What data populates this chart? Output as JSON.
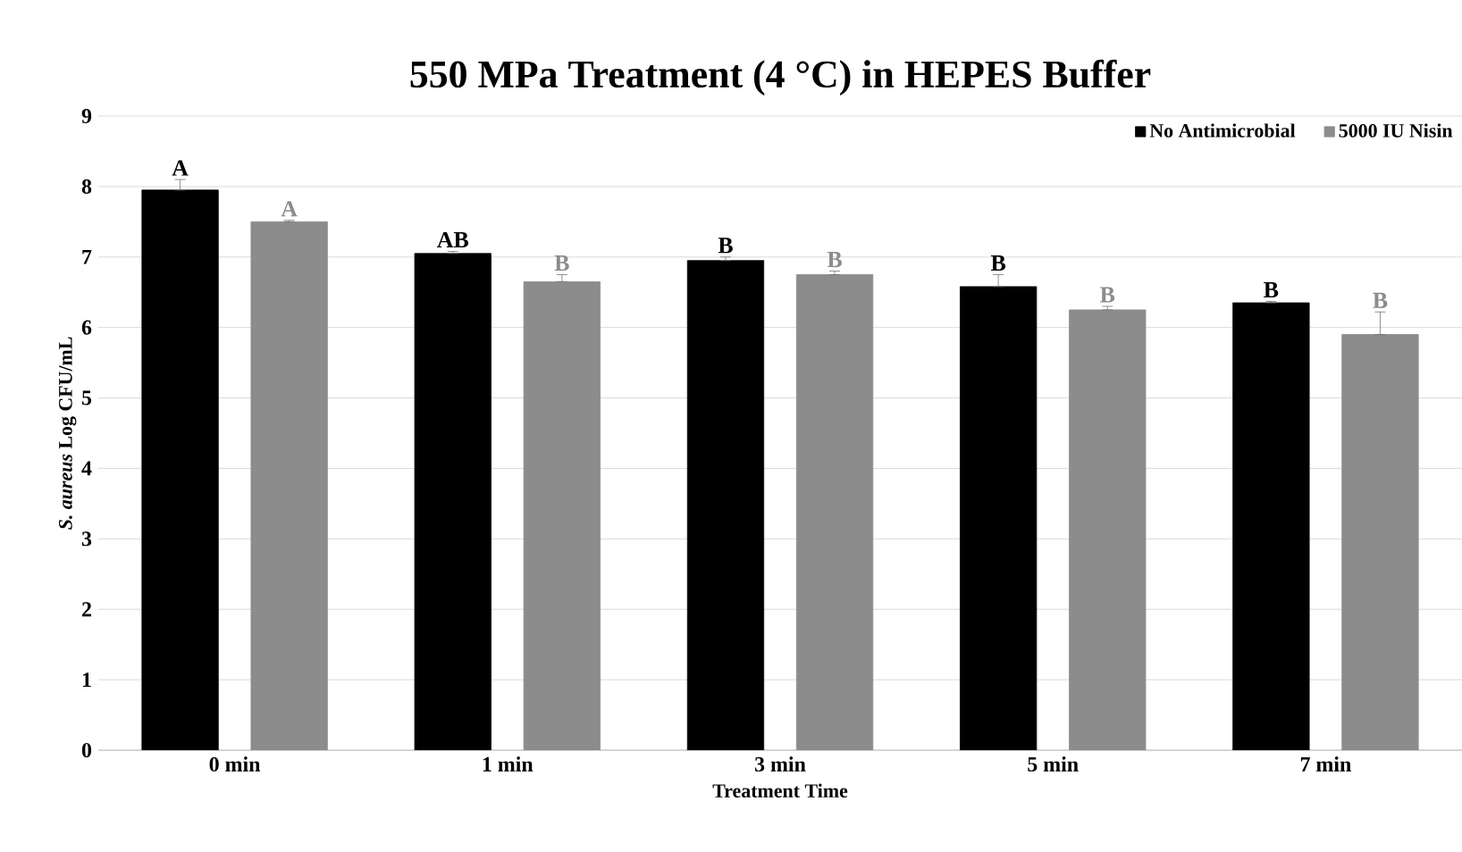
{
  "chart_data": {
    "type": "bar",
    "title": "550 MPa Treatment (4 °C) in HEPES Buffer",
    "xlabel": "Treatment Time",
    "ylabel": "*S. aureus* Log CFU/mL",
    "categories": [
      "0 min",
      "1 min",
      "3 min",
      "5 min",
      "7 min"
    ],
    "series": [
      {
        "name": "No Antimicrobial",
        "color": "#000000",
        "values": [
          7.95,
          7.05,
          6.95,
          6.58,
          6.35
        ],
        "errors": [
          [
            7.95,
            8.1
          ],
          [
            7.05,
            7.08
          ],
          [
            6.95,
            7.0
          ],
          [
            6.58,
            6.75
          ],
          [
            6.35,
            6.37
          ]
        ],
        "value_labels": [
          "A",
          "AB",
          "B",
          "B",
          "B"
        ]
      },
      {
        "name": "5000 IU Nisin",
        "color": "#8c8c8c",
        "values": [
          7.5,
          6.65,
          6.75,
          6.25,
          5.9
        ],
        "errors": [
          [
            7.5,
            7.52
          ],
          [
            6.65,
            6.75
          ],
          [
            6.75,
            6.8
          ],
          [
            6.25,
            6.3
          ],
          [
            5.9,
            6.22
          ]
        ],
        "value_labels": [
          "A",
          "B",
          "B",
          "B",
          "B"
        ]
      }
    ],
    "ylim": [
      0,
      9
    ],
    "yticks": [
      0,
      1,
      2,
      3,
      4,
      5,
      6,
      7,
      8,
      9
    ],
    "grid": "y",
    "legend": "top right"
  }
}
